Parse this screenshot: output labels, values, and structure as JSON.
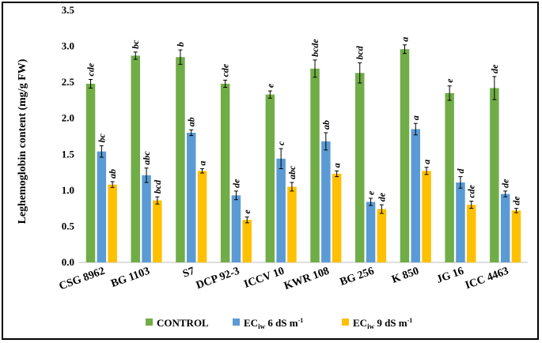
{
  "chart_data": {
    "type": "bar",
    "title": "",
    "xlabel": "",
    "ylabel": "Leghemoglobin content (mg/g FW)",
    "ylim": [
      0,
      3.5
    ],
    "yticks": [
      "0.0",
      "0.5",
      "1.0",
      "1.5",
      "2.0",
      "2.5",
      "3.0",
      "3.5"
    ],
    "grid": false,
    "legend_position": "bottom",
    "categories": [
      "CSG 8962",
      "BG 1103",
      "S7",
      "DCP 92-3",
      "ICCV 10",
      "KWR 108",
      "BG 256",
      "K 850",
      "JG 16",
      "ICC 4463"
    ],
    "series": [
      {
        "name": "CONTROL",
        "legend_parts": {
          "main": "CONTROL",
          "sub": "",
          "rest": "",
          "sup": ""
        },
        "color": "#70ad47",
        "values": [
          2.48,
          2.87,
          2.85,
          2.48,
          2.33,
          2.69,
          2.63,
          2.96,
          2.35,
          2.42
        ],
        "errors": [
          0.06,
          0.05,
          0.1,
          0.05,
          0.05,
          0.12,
          0.14,
          0.06,
          0.1,
          0.16
        ],
        "labels": [
          "cde",
          "bc",
          "b",
          "cde",
          "e",
          "bcde",
          "bcd",
          "a",
          "e",
          "de"
        ]
      },
      {
        "name": "ECiw 6 dS m-1",
        "legend_parts": {
          "main": "EC",
          "sub": "iw",
          "rest": " 6 dS m",
          "sup": "-1"
        },
        "color": "#5b9bd5",
        "values": [
          1.54,
          1.21,
          1.8,
          0.93,
          1.44,
          1.68,
          0.84,
          1.85,
          1.11,
          0.95
        ],
        "errors": [
          0.08,
          0.1,
          0.04,
          0.06,
          0.14,
          0.12,
          0.05,
          0.08,
          0.08,
          0.04
        ],
        "labels": [
          "bc",
          "abc",
          "ab",
          "de",
          "c",
          "ab",
          "e",
          "a",
          "d",
          "de"
        ]
      },
      {
        "name": "ECiw 9 dS m-1",
        "legend_parts": {
          "main": "EC",
          "sub": "iw",
          "rest": " 9 dS m",
          "sup": "-1"
        },
        "color": "#ffc000",
        "values": [
          1.08,
          0.86,
          1.27,
          0.59,
          1.05,
          1.23,
          0.74,
          1.27,
          0.8,
          0.72
        ],
        "errors": [
          0.04,
          0.05,
          0.03,
          0.04,
          0.06,
          0.04,
          0.06,
          0.05,
          0.05,
          0.03
        ],
        "labels": [
          "ab",
          "bcd",
          "a",
          "e",
          "abc",
          "a",
          "de",
          "a",
          "cde",
          "de"
        ]
      }
    ]
  }
}
